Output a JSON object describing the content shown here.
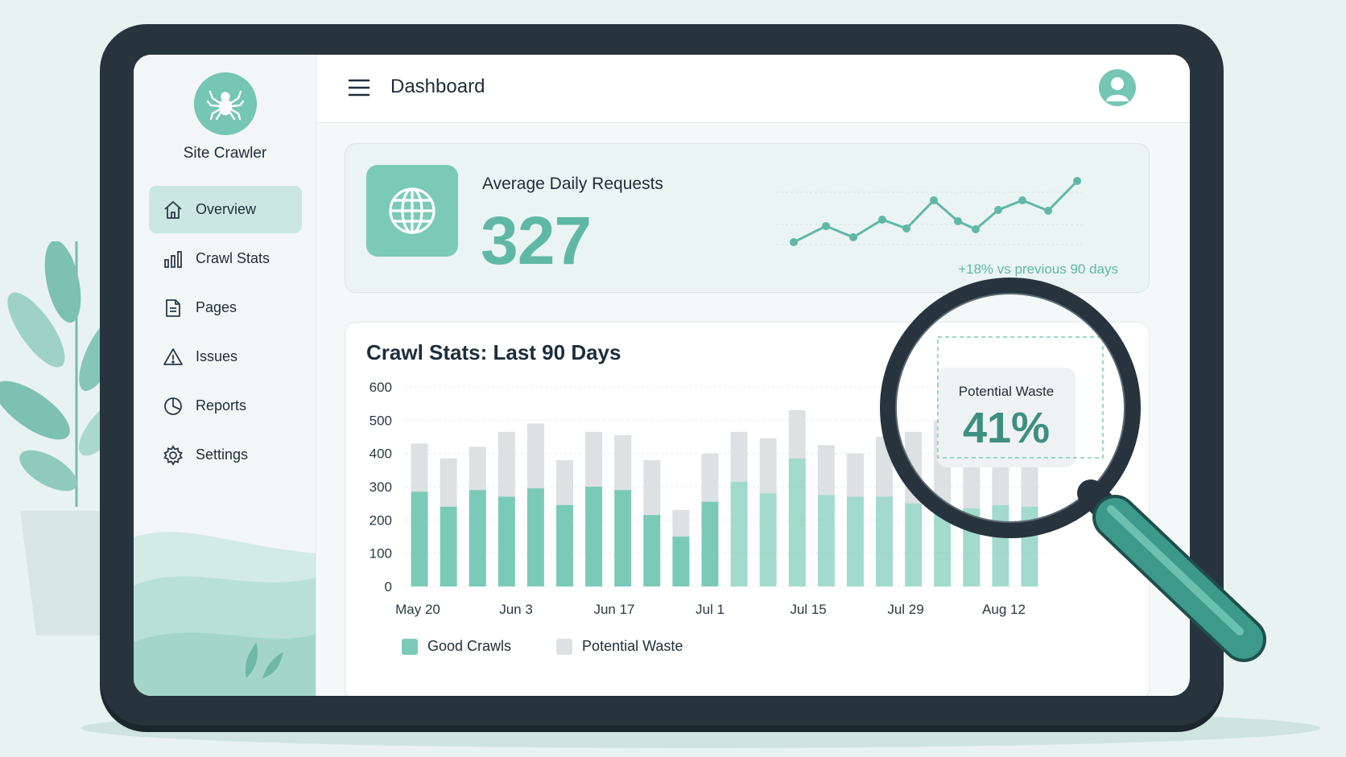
{
  "app": {
    "name": "Site Crawler"
  },
  "sidebar": {
    "items": [
      {
        "label": "Overview",
        "icon": "home-icon",
        "active": true
      },
      {
        "label": "Crawl Stats",
        "icon": "bar-chart-icon",
        "active": false
      },
      {
        "label": "Pages",
        "icon": "document-icon",
        "active": false
      },
      {
        "label": "Issues",
        "icon": "warning-icon",
        "active": false
      },
      {
        "label": "Reports",
        "icon": "pie-chart-icon",
        "active": false
      },
      {
        "label": "Settings",
        "icon": "gear-icon",
        "active": false
      }
    ]
  },
  "header": {
    "title": "Dashboard"
  },
  "stat": {
    "label": "Average Daily Requests",
    "value": "327",
    "change": "+18% vs previous 90 days"
  },
  "callout": {
    "label": "Potential Waste",
    "value": "41%"
  },
  "colors": {
    "accent": "#5fb8a5",
    "good": "#7bcab8",
    "waste": "#dde1e4"
  },
  "chart_data": {
    "type": "bar",
    "stacked": true,
    "title": "Crawl Stats: Last 90 Days",
    "ylim": [
      0,
      600
    ],
    "yticks": [
      0,
      100,
      200,
      300,
      400,
      500,
      600
    ],
    "xticks": [
      "May 20",
      "Jun 3",
      "Jun 17",
      "Jul 1",
      "Jul 15",
      "Jul 29",
      "Aug 12"
    ],
    "legend_position": "bottom-left",
    "series": [
      {
        "name": "Good Crawls",
        "values": [
          285,
          240,
          290,
          270,
          295,
          245,
          300,
          290,
          215,
          150,
          255,
          315,
          280,
          385,
          275,
          270,
          270,
          250,
          240,
          235,
          245,
          240
        ]
      },
      {
        "name": "Potential Waste",
        "values": [
          145,
          145,
          130,
          195,
          195,
          135,
          165,
          165,
          165,
          80,
          145,
          150,
          165,
          145,
          150,
          130,
          180,
          215,
          260,
          250,
          245,
          235
        ]
      }
    ]
  }
}
